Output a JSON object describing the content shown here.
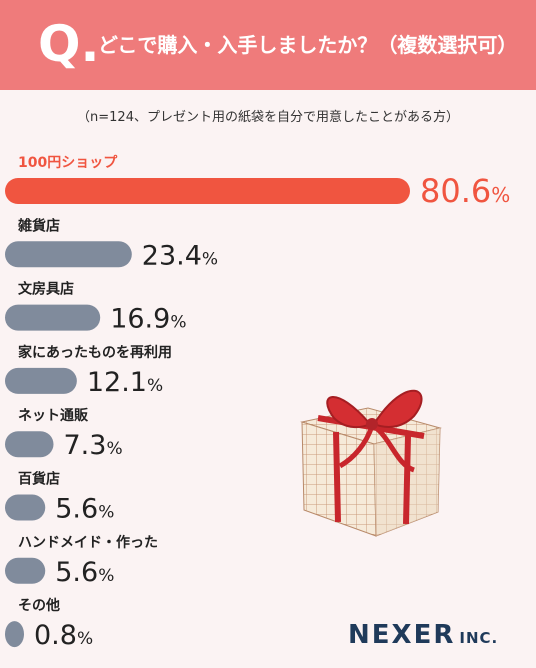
{
  "header": {
    "q_mark": "Q.",
    "title": "どこで購入・入手しましたか？（複数選択可）"
  },
  "note": "（n=124、プレゼント用の紙袋を自分で用意したことがある方）",
  "logo": {
    "main": "NEXER",
    "suffix": "INC."
  },
  "colors": {
    "header": "#ef7b7b",
    "highlight": "#f05540",
    "bar": "#808b9c",
    "background": "#fbf3f3",
    "logo": "#1f3a5a"
  },
  "chart_data": {
    "type": "bar",
    "orientation": "horizontal",
    "unit": "%",
    "categories": [
      "100円ショップ",
      "雑貨店",
      "文房具店",
      "家にあったものを再利用",
      "ネット通販",
      "百貨店",
      "ハンドメイド・作った",
      "その他"
    ],
    "values": [
      80.6,
      23.4,
      16.9,
      12.1,
      7.3,
      5.6,
      5.6,
      0.8
    ],
    "highlight_index": 0
  }
}
